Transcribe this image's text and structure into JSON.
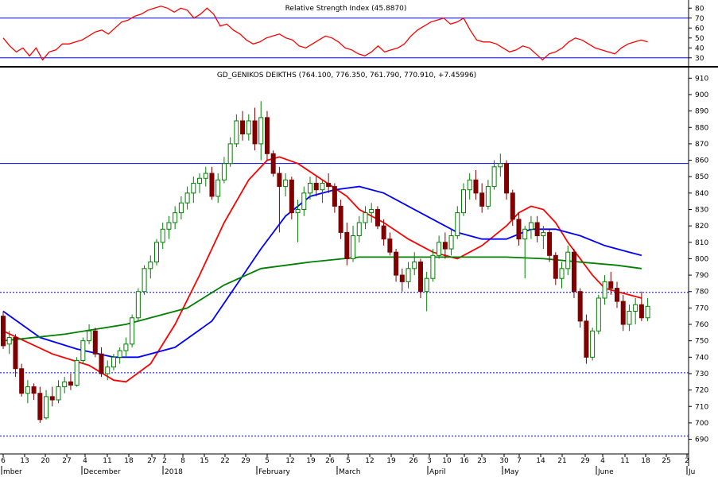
{
  "rsi_panel": {
    "title": "Relative Strength Index (45.8870)",
    "y_ticks": [
      "80",
      "70",
      "60",
      "50",
      "40",
      "30"
    ],
    "ylim": [
      25,
      85
    ]
  },
  "price_panel": {
    "title": "GD_GENIKOS DEIKTHS (764.100, 776.350, 761.790, 770.910, +7.45996)",
    "y_ticks": [
      "910",
      "900",
      "890",
      "880",
      "870",
      "860",
      "850",
      "840",
      "830",
      "820",
      "810",
      "800",
      "790",
      "780",
      "770",
      "760",
      "750",
      "740",
      "730",
      "720",
      "710",
      "700",
      "690"
    ],
    "ylim": [
      683,
      915
    ]
  },
  "x_day_labels": [
    "6",
    "13",
    "20",
    "27",
    "4",
    "11",
    "18",
    "27",
    "2",
    "8",
    "15",
    "22",
    "29",
    "5",
    "12",
    "19",
    "26",
    "5",
    "12",
    "19",
    "26",
    "3",
    "10",
    "16",
    "23",
    "30",
    "7",
    "14",
    "21",
    "29",
    "4",
    "11",
    "18",
    "25",
    "2"
  ],
  "x_month_labels": [
    "mber",
    "December",
    "2018",
    "February",
    "March",
    "April",
    "May",
    "June",
    "Ju"
  ],
  "colors": {
    "candle_up": "#008000",
    "candle_down": "#800000",
    "ma_short": "#ff0000",
    "ma_mid": "#0000ff",
    "ma_long": "#008000",
    "level_line": "#0000ff",
    "rsi_line": "#ff0000"
  },
  "chart_data": {
    "type": "candlestick",
    "x_axis": "trading days, Nov 2017 – Jun 2018",
    "candles": [
      {
        "o": 765,
        "h": 768,
        "l": 745,
        "c": 747
      },
      {
        "o": 748,
        "h": 756,
        "l": 742,
        "c": 752
      },
      {
        "o": 752,
        "h": 754,
        "l": 728,
        "c": 733
      },
      {
        "o": 733,
        "h": 736,
        "l": 716,
        "c": 718
      },
      {
        "o": 718,
        "h": 726,
        "l": 712,
        "c": 722
      },
      {
        "o": 722,
        "h": 724,
        "l": 714,
        "c": 718
      },
      {
        "o": 718,
        "h": 722,
        "l": 700,
        "c": 702
      },
      {
        "o": 703,
        "h": 720,
        "l": 702,
        "c": 716
      },
      {
        "o": 716,
        "h": 722,
        "l": 710,
        "c": 714
      },
      {
        "o": 714,
        "h": 726,
        "l": 712,
        "c": 722
      },
      {
        "o": 722,
        "h": 728,
        "l": 718,
        "c": 725
      },
      {
        "o": 725,
        "h": 730,
        "l": 720,
        "c": 723
      },
      {
        "o": 723,
        "h": 740,
        "l": 722,
        "c": 738
      },
      {
        "o": 738,
        "h": 752,
        "l": 736,
        "c": 750
      },
      {
        "o": 750,
        "h": 760,
        "l": 748,
        "c": 756
      },
      {
        "o": 756,
        "h": 758,
        "l": 740,
        "c": 742
      },
      {
        "o": 742,
        "h": 746,
        "l": 728,
        "c": 730
      },
      {
        "o": 730,
        "h": 738,
        "l": 726,
        "c": 734
      },
      {
        "o": 734,
        "h": 742,
        "l": 732,
        "c": 740
      },
      {
        "o": 740,
        "h": 746,
        "l": 736,
        "c": 744
      },
      {
        "o": 744,
        "h": 752,
        "l": 740,
        "c": 748
      },
      {
        "o": 748,
        "h": 766,
        "l": 746,
        "c": 764
      },
      {
        "o": 764,
        "h": 782,
        "l": 762,
        "c": 780
      },
      {
        "o": 780,
        "h": 796,
        "l": 778,
        "c": 794
      },
      {
        "o": 794,
        "h": 802,
        "l": 788,
        "c": 798
      },
      {
        "o": 798,
        "h": 812,
        "l": 796,
        "c": 810
      },
      {
        "o": 810,
        "h": 822,
        "l": 806,
        "c": 818
      },
      {
        "o": 818,
        "h": 826,
        "l": 812,
        "c": 822
      },
      {
        "o": 822,
        "h": 832,
        "l": 818,
        "c": 828
      },
      {
        "o": 828,
        "h": 838,
        "l": 824,
        "c": 834
      },
      {
        "o": 834,
        "h": 844,
        "l": 830,
        "c": 840
      },
      {
        "o": 840,
        "h": 850,
        "l": 834,
        "c": 846
      },
      {
        "o": 846,
        "h": 852,
        "l": 840,
        "c": 849
      },
      {
        "o": 849,
        "h": 856,
        "l": 844,
        "c": 852
      },
      {
        "o": 852,
        "h": 856,
        "l": 836,
        "c": 838
      },
      {
        "o": 838,
        "h": 852,
        "l": 834,
        "c": 848
      },
      {
        "o": 848,
        "h": 862,
        "l": 846,
        "c": 858
      },
      {
        "o": 858,
        "h": 874,
        "l": 856,
        "c": 870
      },
      {
        "o": 870,
        "h": 888,
        "l": 868,
        "c": 884
      },
      {
        "o": 884,
        "h": 890,
        "l": 872,
        "c": 876
      },
      {
        "o": 876,
        "h": 888,
        "l": 872,
        "c": 884
      },
      {
        "o": 884,
        "h": 892,
        "l": 866,
        "c": 870
      },
      {
        "o": 870,
        "h": 896,
        "l": 860,
        "c": 886
      },
      {
        "o": 886,
        "h": 890,
        "l": 860,
        "c": 864
      },
      {
        "o": 864,
        "h": 866,
        "l": 850,
        "c": 852
      },
      {
        "o": 852,
        "h": 856,
        "l": 816,
        "c": 844
      },
      {
        "o": 844,
        "h": 852,
        "l": 838,
        "c": 848
      },
      {
        "o": 848,
        "h": 850,
        "l": 824,
        "c": 828
      },
      {
        "o": 828,
        "h": 836,
        "l": 810,
        "c": 830
      },
      {
        "o": 830,
        "h": 844,
        "l": 826,
        "c": 840
      },
      {
        "o": 840,
        "h": 850,
        "l": 836,
        "c": 846
      },
      {
        "o": 846,
        "h": 850,
        "l": 838,
        "c": 842
      },
      {
        "o": 842,
        "h": 848,
        "l": 834,
        "c": 846
      },
      {
        "o": 846,
        "h": 852,
        "l": 840,
        "c": 844
      },
      {
        "o": 844,
        "h": 846,
        "l": 828,
        "c": 832
      },
      {
        "o": 832,
        "h": 836,
        "l": 812,
        "c": 816
      },
      {
        "o": 816,
        "h": 822,
        "l": 796,
        "c": 800
      },
      {
        "o": 800,
        "h": 820,
        "l": 798,
        "c": 814
      },
      {
        "o": 814,
        "h": 826,
        "l": 810,
        "c": 822
      },
      {
        "o": 822,
        "h": 832,
        "l": 818,
        "c": 828
      },
      {
        "o": 828,
        "h": 834,
        "l": 822,
        "c": 830
      },
      {
        "o": 830,
        "h": 832,
        "l": 818,
        "c": 820
      },
      {
        "o": 820,
        "h": 824,
        "l": 808,
        "c": 812
      },
      {
        "o": 812,
        "h": 816,
        "l": 802,
        "c": 804
      },
      {
        "o": 804,
        "h": 806,
        "l": 786,
        "c": 790
      },
      {
        "o": 790,
        "h": 794,
        "l": 780,
        "c": 786
      },
      {
        "o": 786,
        "h": 798,
        "l": 782,
        "c": 794
      },
      {
        "o": 794,
        "h": 804,
        "l": 790,
        "c": 798
      },
      {
        "o": 798,
        "h": 800,
        "l": 776,
        "c": 780
      },
      {
        "o": 780,
        "h": 792,
        "l": 768,
        "c": 788
      },
      {
        "o": 788,
        "h": 806,
        "l": 786,
        "c": 802
      },
      {
        "o": 802,
        "h": 814,
        "l": 800,
        "c": 810
      },
      {
        "o": 810,
        "h": 816,
        "l": 800,
        "c": 806
      },
      {
        "o": 806,
        "h": 818,
        "l": 802,
        "c": 814
      },
      {
        "o": 814,
        "h": 832,
        "l": 812,
        "c": 828
      },
      {
        "o": 828,
        "h": 846,
        "l": 826,
        "c": 842
      },
      {
        "o": 842,
        "h": 852,
        "l": 836,
        "c": 848
      },
      {
        "o": 848,
        "h": 854,
        "l": 836,
        "c": 840
      },
      {
        "o": 840,
        "h": 846,
        "l": 828,
        "c": 832
      },
      {
        "o": 832,
        "h": 848,
        "l": 830,
        "c": 844
      },
      {
        "o": 844,
        "h": 860,
        "l": 842,
        "c": 856
      },
      {
        "o": 856,
        "h": 864,
        "l": 850,
        "c": 858
      },
      {
        "o": 858,
        "h": 860,
        "l": 836,
        "c": 840
      },
      {
        "o": 840,
        "h": 842,
        "l": 820,
        "c": 824
      },
      {
        "o": 824,
        "h": 828,
        "l": 808,
        "c": 812
      },
      {
        "o": 812,
        "h": 820,
        "l": 788,
        "c": 818
      },
      {
        "o": 818,
        "h": 826,
        "l": 812,
        "c": 822
      },
      {
        "o": 822,
        "h": 826,
        "l": 810,
        "c": 814
      },
      {
        "o": 814,
        "h": 820,
        "l": 806,
        "c": 816
      },
      {
        "o": 816,
        "h": 818,
        "l": 798,
        "c": 802
      },
      {
        "o": 802,
        "h": 804,
        "l": 784,
        "c": 788
      },
      {
        "o": 788,
        "h": 798,
        "l": 782,
        "c": 794
      },
      {
        "o": 794,
        "h": 808,
        "l": 790,
        "c": 804
      },
      {
        "o": 804,
        "h": 806,
        "l": 776,
        "c": 780
      },
      {
        "o": 780,
        "h": 782,
        "l": 758,
        "c": 762
      },
      {
        "o": 762,
        "h": 766,
        "l": 736,
        "c": 740
      },
      {
        "o": 740,
        "h": 758,
        "l": 738,
        "c": 756
      },
      {
        "o": 756,
        "h": 778,
        "l": 754,
        "c": 776
      },
      {
        "o": 776,
        "h": 790,
        "l": 772,
        "c": 786
      },
      {
        "o": 786,
        "h": 792,
        "l": 778,
        "c": 782
      },
      {
        "o": 782,
        "h": 786,
        "l": 770,
        "c": 774
      },
      {
        "o": 774,
        "h": 778,
        "l": 756,
        "c": 760
      },
      {
        "o": 760,
        "h": 772,
        "l": 756,
        "c": 768
      },
      {
        "o": 768,
        "h": 776,
        "l": 760,
        "c": 772
      },
      {
        "o": 772,
        "h": 780,
        "l": 762,
        "c": 764
      },
      {
        "o": 764,
        "h": 776,
        "l": 762,
        "c": 771
      }
    ],
    "series": [
      {
        "type": "line",
        "values": [
          [
            0,
            756
          ],
          [
            8,
            742
          ],
          [
            14,
            735
          ],
          [
            18,
            726
          ],
          [
            20,
            725
          ],
          [
            24,
            736
          ],
          [
            28,
            760
          ],
          [
            32,
            790
          ],
          [
            36,
            822
          ],
          [
            40,
            848
          ],
          [
            43,
            860
          ],
          [
            45,
            862
          ],
          [
            48,
            858
          ],
          [
            52,
            848
          ],
          [
            56,
            838
          ],
          [
            58,
            830
          ],
          [
            62,
            822
          ],
          [
            66,
            812
          ],
          [
            70,
            804
          ],
          [
            74,
            800
          ],
          [
            78,
            808
          ],
          [
            82,
            820
          ],
          [
            84,
            828
          ],
          [
            86,
            832
          ],
          [
            88,
            830
          ],
          [
            90,
            822
          ],
          [
            92,
            810
          ],
          [
            94,
            800
          ],
          [
            96,
            790
          ],
          [
            98,
            782
          ],
          [
            100,
            780
          ],
          [
            102,
            778
          ],
          [
            104,
            776
          ]
        ]
      },
      {
        "type": "line",
        "values": [
          [
            0,
            768
          ],
          [
            6,
            752
          ],
          [
            12,
            745
          ],
          [
            18,
            740
          ],
          [
            22,
            740
          ],
          [
            28,
            746
          ],
          [
            34,
            762
          ],
          [
            38,
            784
          ],
          [
            42,
            806
          ],
          [
            46,
            826
          ],
          [
            50,
            838
          ],
          [
            54,
            842
          ],
          [
            58,
            844
          ],
          [
            62,
            840
          ],
          [
            66,
            832
          ],
          [
            70,
            824
          ],
          [
            74,
            816
          ],
          [
            78,
            812
          ],
          [
            82,
            812
          ],
          [
            86,
            818
          ],
          [
            90,
            818
          ],
          [
            94,
            814
          ],
          [
            98,
            808
          ],
          [
            102,
            804
          ],
          [
            104,
            802
          ]
        ]
      },
      {
        "type": "line",
        "values": [
          [
            0,
            750
          ],
          [
            10,
            754
          ],
          [
            20,
            760
          ],
          [
            30,
            770
          ],
          [
            36,
            784
          ],
          [
            42,
            794
          ],
          [
            50,
            798
          ],
          [
            58,
            801
          ],
          [
            66,
            801
          ],
          [
            74,
            801
          ],
          [
            82,
            801
          ],
          [
            88,
            800
          ],
          [
            94,
            798
          ],
          [
            100,
            796
          ],
          [
            104,
            794
          ]
        ]
      }
    ],
    "levels": [
      858,
      779.5,
      730.5,
      692
    ],
    "rsi": [
      50,
      42,
      36,
      40,
      32,
      40,
      28,
      36,
      38,
      44,
      44,
      46,
      48,
      52,
      56,
      58,
      54,
      60,
      66,
      68,
      72,
      74,
      78,
      80,
      82,
      80,
      76,
      80,
      78,
      70,
      74,
      80,
      74,
      62,
      64,
      58,
      54,
      48,
      44,
      46,
      50,
      52,
      54,
      50,
      48,
      42,
      40,
      44,
      48,
      52,
      50,
      46,
      40,
      38,
      34,
      32,
      36,
      42,
      36,
      38,
      40,
      44,
      52,
      58,
      62,
      66,
      68,
      70,
      64,
      66,
      70,
      58,
      48,
      46,
      46,
      44,
      40,
      36,
      38,
      42,
      40,
      34,
      28,
      34,
      36,
      40,
      46,
      50,
      48,
      44,
      40,
      38,
      36,
      34,
      40,
      44,
      46,
      48,
      46
    ]
  }
}
